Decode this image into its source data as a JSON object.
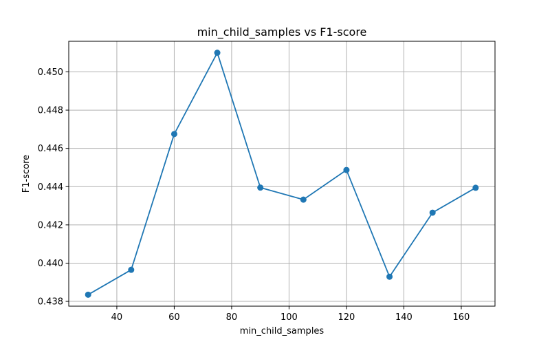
{
  "chart_data": {
    "type": "line",
    "title": "min_child_samples vs F1-score",
    "xlabel": "min_child_samples",
    "ylabel": "F1-score",
    "x": [
      30,
      45,
      60,
      75,
      90,
      105,
      120,
      135,
      150,
      165
    ],
    "series": [
      {
        "values": [
          0.43835,
          0.43965,
          0.44675,
          0.451,
          0.44395,
          0.44332,
          0.44487,
          0.43929,
          0.44264,
          0.44394
        ],
        "color": "#1f77b4",
        "marker": "circle"
      }
    ],
    "xlim": [
      23.25,
      171.75
    ],
    "ylim": [
      0.43775,
      0.4516
    ],
    "xticks": [
      40,
      60,
      80,
      100,
      120,
      140,
      160
    ],
    "xtick_labels": [
      "40",
      "60",
      "80",
      "100",
      "120",
      "140",
      "160"
    ],
    "yticks": [
      0.438,
      0.44,
      0.442,
      0.444,
      0.446,
      0.448,
      0.45
    ],
    "ytick_labels": [
      "0.438",
      "0.440",
      "0.442",
      "0.444",
      "0.446",
      "0.448",
      "0.450"
    ],
    "grid": true,
    "colors": {
      "grid": "#b0b0b0",
      "axis": "#000000",
      "background": "#ffffff"
    }
  }
}
